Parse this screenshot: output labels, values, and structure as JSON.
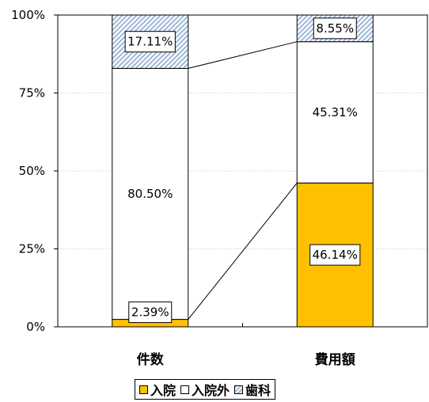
{
  "chart_data": {
    "type": "bar",
    "stacked": "percent",
    "categories": [
      "件数",
      "費用額"
    ],
    "series": [
      {
        "name": "入院",
        "values": [
          2.39,
          46.14
        ],
        "labels": [
          "2.39%",
          "46.14%"
        ],
        "color": "#FFC000"
      },
      {
        "name": "入院外",
        "values": [
          80.5,
          45.31
        ],
        "labels": [
          "80.50%",
          "45.31%"
        ],
        "color": "#FFFFFF"
      },
      {
        "name": "歯科",
        "values": [
          17.11,
          8.55
        ],
        "labels": [
          "17.11%",
          "8.55%"
        ],
        "color": "#C6D9F1",
        "pattern": "diagonal-hatch"
      }
    ],
    "yticks": [
      "0%",
      "25%",
      "50%",
      "75%",
      "100%"
    ],
    "ylim": [
      0,
      100
    ],
    "grid": true,
    "legend": "bottom",
    "series_connectors": true,
    "title": "",
    "xlabel": "",
    "ylabel": ""
  }
}
